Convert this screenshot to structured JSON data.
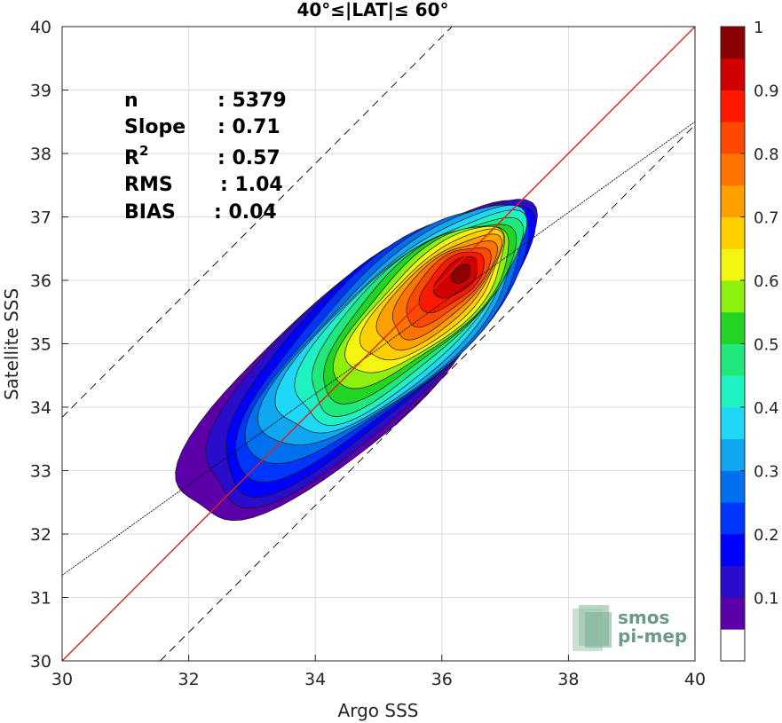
{
  "chart_data": {
    "type": "heatmap",
    "subtype": "2d-density-contour",
    "title": "40°≤|LAT|≤ 60°",
    "xlabel": "Argo SSS",
    "ylabel": "Satellite SSS",
    "xlim": [
      30,
      40
    ],
    "ylim": [
      30,
      40
    ],
    "xticks": [
      "30",
      "32",
      "34",
      "36",
      "38",
      "40"
    ],
    "yticks": [
      "30",
      "31",
      "32",
      "33",
      "34",
      "35",
      "36",
      "37",
      "38",
      "39",
      "40"
    ],
    "grid": true,
    "stats": [
      {
        "label": "n",
        "value": ": 5379"
      },
      {
        "label": "Slope",
        "value": ": 0.71"
      },
      {
        "label": "R",
        "sup": "2",
        "value": ": 0.57"
      },
      {
        "label": "RMS",
        "value": ": 1.04"
      },
      {
        "label": "BIAS",
        "value": ": 0.04"
      }
    ],
    "reference_lines": {
      "identity": {
        "slope": 1,
        "intercept": 0,
        "color": "#e0201b"
      },
      "fit": {
        "slope": 0.71,
        "x_at_y30": 30,
        "y_at_x30": 31.35,
        "y_at_x40": 38.5
      },
      "upper_bound_y_at_x30": 33.84,
      "lower_bound_x_at_y30": 31.55
    },
    "density_peak": {
      "x": 36.3,
      "y": 36.1
    },
    "colorbar": {
      "range": [
        0,
        1
      ],
      "ticks": [
        "0.1",
        "0.2",
        "0.3",
        "0.4",
        "0.5",
        "0.6",
        "0.7",
        "0.8",
        "0.9",
        "1"
      ],
      "colors": [
        "#ffffff",
        "#5b00a8",
        "#2a0ccc",
        "#0000ff",
        "#0035ff",
        "#0070ee",
        "#10a6f0",
        "#1fd8f8",
        "#1ff2c2",
        "#20e87c",
        "#22d522",
        "#8ef00e",
        "#f5f512",
        "#ffd000",
        "#ffa000",
        "#ff7400",
        "#ff4800",
        "#ff1800",
        "#d00000",
        "#8b0000"
      ]
    }
  },
  "watermark": {
    "line1": "smos",
    "line2": "pi-mep"
  }
}
